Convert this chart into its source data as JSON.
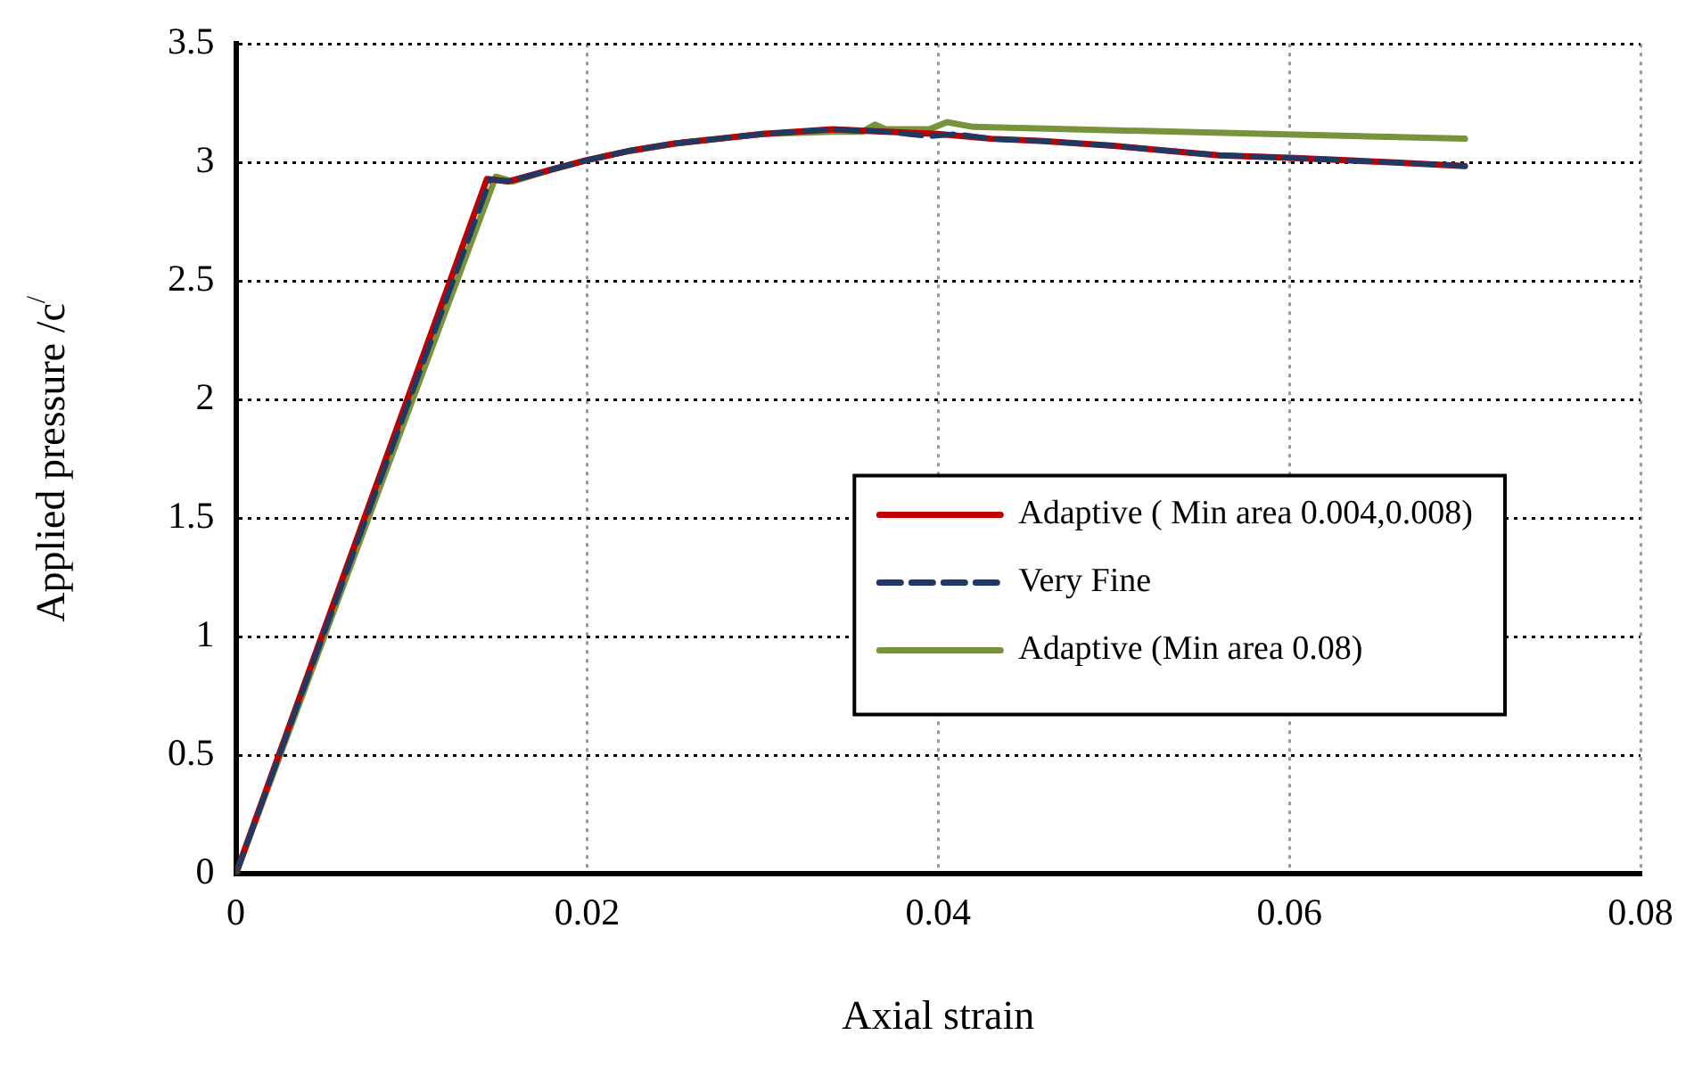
{
  "chart_data": {
    "type": "line",
    "xlabel": "Axial strain",
    "ylabel": "Applied pressure /c$^{/}$",
    "xlim": [
      0,
      0.08
    ],
    "xticks": [
      0,
      0.02,
      0.04,
      0.06,
      0.08
    ],
    "ylim": [
      0,
      3.5
    ],
    "yticks": [
      0,
      0.5,
      1,
      1.5,
      2,
      2.5,
      3,
      3.5
    ],
    "grid": true,
    "legend": "center right",
    "marker": "none",
    "series": [
      {
        "name": "Adaptive ( Min area 0.004,0.008)",
        "color": "#c00000",
        "line_style": "solid",
        "x": [
          0,
          0.0143,
          0.0155,
          0.018,
          0.02,
          0.0225,
          0.025,
          0.0275,
          0.03,
          0.034,
          0.037,
          0.04,
          0.043,
          0.046,
          0.05,
          0.053,
          0.056,
          0.06,
          0.063,
          0.066,
          0.07
        ],
        "values": [
          0,
          2.93,
          2.92,
          2.97,
          3.01,
          3.05,
          3.08,
          3.1,
          3.12,
          3.14,
          3.13,
          3.12,
          3.1,
          3.09,
          3.07,
          3.05,
          3.03,
          3.02,
          3.01,
          3.0,
          2.985
        ]
      },
      {
        "name": "Very Fine",
        "color": "#1f3864",
        "line_style": "dashed",
        "x": [
          0,
          0.0145,
          0.0155,
          0.018,
          0.02,
          0.0225,
          0.025,
          0.0275,
          0.03,
          0.034,
          0.037,
          0.0395,
          0.041,
          0.043,
          0.046,
          0.05,
          0.053,
          0.056,
          0.06,
          0.063,
          0.066,
          0.07
        ],
        "values": [
          0,
          2.93,
          2.92,
          2.97,
          3.01,
          3.05,
          3.08,
          3.1,
          3.12,
          3.14,
          3.13,
          3.11,
          3.12,
          3.1,
          3.09,
          3.07,
          3.05,
          3.03,
          3.02,
          3.01,
          3.0,
          2.985
        ]
      },
      {
        "name": "Adaptive (Min area 0.08)",
        "color": "#77933c",
        "line_style": "solid",
        "x": [
          0,
          0.0148,
          0.0158,
          0.018,
          0.02,
          0.0225,
          0.025,
          0.0275,
          0.03,
          0.034,
          0.0357,
          0.0364,
          0.037,
          0.0395,
          0.0405,
          0.042,
          0.07
        ],
        "values": [
          0,
          2.94,
          2.92,
          2.97,
          3.01,
          3.05,
          3.08,
          3.1,
          3.12,
          3.13,
          3.13,
          3.16,
          3.14,
          3.14,
          3.17,
          3.15,
          3.1
        ]
      }
    ]
  }
}
